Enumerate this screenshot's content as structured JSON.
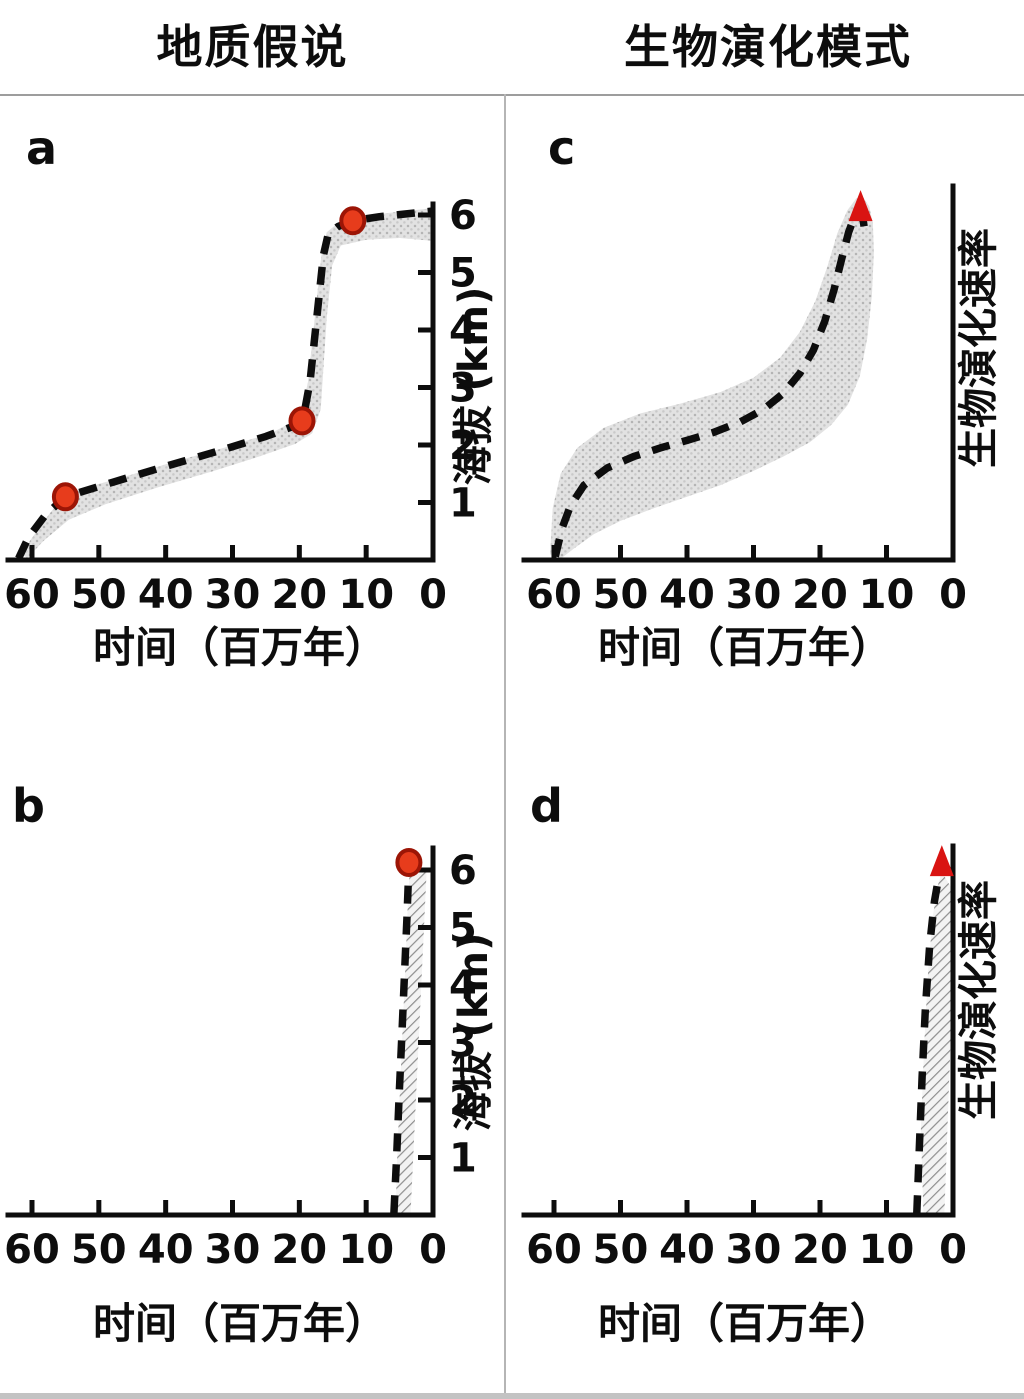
{
  "header": {
    "left_title": "地质假说",
    "right_title": "生物演化模式"
  },
  "colors": {
    "line_black": "#0d0d0d",
    "marker_red": "#e73c1c",
    "marker_stroke": "#9c1506",
    "triangle_red": "#d91412",
    "band_gray": "#cccccc",
    "hatch_gray": "#8e8e8e",
    "divider_gray": "#b5b5b5"
  },
  "chart_data": [
    {
      "id": "a",
      "panel_label": "a",
      "type": "line",
      "x_label": "时间（百万年）",
      "y_label": "海拔 (km)",
      "x_ticks": [
        60,
        50,
        40,
        30,
        20,
        10,
        0
      ],
      "y_ticks": [
        1,
        2,
        3,
        4,
        5,
        6
      ],
      "x_range": [
        63,
        0
      ],
      "x_axis_reversed": true,
      "y_range": [
        0,
        6.5
      ],
      "grid": false,
      "band_style": "stipple",
      "description": "stepwise uplift: slow rise then abrupt jump ~20-15 Ma, red dots mark uplift stages",
      "curve": [
        [
          62,
          0.03
        ],
        [
          60.5,
          0.4
        ],
        [
          58,
          0.78
        ],
        [
          55,
          1.1
        ],
        [
          48,
          1.35
        ],
        [
          40,
          1.63
        ],
        [
          32,
          1.9
        ],
        [
          25,
          2.15
        ],
        [
          21,
          2.32
        ],
        [
          19.5,
          2.42
        ],
        [
          18.4,
          3.1
        ],
        [
          17.4,
          4.2
        ],
        [
          16.4,
          5.3
        ],
        [
          15.7,
          5.66
        ],
        [
          14.2,
          5.8
        ],
        [
          12,
          5.9
        ],
        [
          8,
          5.97
        ],
        [
          4,
          6.02
        ],
        [
          0,
          6.07
        ]
      ],
      "band": [
        [
          61.6,
          0.12
        ],
        [
          58.2,
          0.68
        ],
        [
          55,
          1.16
        ],
        [
          47,
          1.42
        ],
        [
          39,
          1.7
        ],
        [
          31,
          1.96
        ],
        [
          24,
          2.22
        ],
        [
          19.9,
          2.47
        ],
        [
          18.7,
          3.1
        ],
        [
          17.7,
          4.2
        ],
        [
          16.7,
          5.3
        ],
        [
          15.9,
          5.7
        ],
        [
          14.2,
          5.86
        ],
        [
          12,
          5.96
        ],
        [
          8,
          6.02
        ],
        [
          0,
          6.12
        ],
        [
          0,
          5.55
        ],
        [
          5,
          5.6
        ],
        [
          10,
          5.57
        ],
        [
          13.8,
          5.47
        ],
        [
          15.1,
          5.12
        ],
        [
          15.9,
          4.2
        ],
        [
          16.8,
          2.62
        ],
        [
          18.1,
          2.2
        ],
        [
          20.6,
          2.02
        ],
        [
          26,
          1.8
        ],
        [
          33,
          1.54
        ],
        [
          41,
          1.27
        ],
        [
          49,
          0.97
        ],
        [
          54.5,
          0.7
        ],
        [
          58.3,
          0.33
        ],
        [
          60.7,
          0.03
        ]
      ],
      "markers": [
        {
          "shape": "circle",
          "x": 55,
          "y": 1.1
        },
        {
          "shape": "circle",
          "x": 19.6,
          "y": 2.42
        },
        {
          "shape": "circle",
          "x": 12,
          "y": 5.9
        }
      ]
    },
    {
      "id": "c",
      "panel_label": "c",
      "type": "line",
      "x_label": "时间（百万年）",
      "y_label": "生物演化速率",
      "x_ticks": [
        60,
        50,
        40,
        30,
        20,
        10,
        0
      ],
      "y_ticks": [],
      "x_range": [
        63,
        0
      ],
      "x_axis_reversed": true,
      "y_range": [
        0,
        6.5
      ],
      "grid": false,
      "band_style": "stipple",
      "description": "gradual sigmoid increase in evolutionary rate peaking ~15 Ma, red triangle at peak",
      "curve": [
        [
          59.8,
          0.06
        ],
        [
          58.8,
          0.55
        ],
        [
          57.5,
          0.95
        ],
        [
          55.5,
          1.3
        ],
        [
          52,
          1.6
        ],
        [
          48,
          1.8
        ],
        [
          44,
          1.95
        ],
        [
          40,
          2.08
        ],
        [
          36,
          2.22
        ],
        [
          32,
          2.4
        ],
        [
          28.5,
          2.62
        ],
        [
          25.5,
          2.9
        ],
        [
          23,
          3.25
        ],
        [
          21,
          3.65
        ],
        [
          19.3,
          4.15
        ],
        [
          17.9,
          4.7
        ],
        [
          16.7,
          5.25
        ],
        [
          15.7,
          5.7
        ],
        [
          14.8,
          5.98
        ],
        [
          14.1,
          6.05
        ],
        [
          13.5,
          5.9
        ],
        [
          13.2,
          5.68
        ]
      ],
      "band": [
        [
          60.6,
          0.1
        ],
        [
          60.2,
          0.9
        ],
        [
          59,
          1.5
        ],
        [
          56.5,
          1.95
        ],
        [
          52.5,
          2.3
        ],
        [
          47,
          2.55
        ],
        [
          41,
          2.72
        ],
        [
          35,
          2.92
        ],
        [
          30,
          3.17
        ],
        [
          26,
          3.52
        ],
        [
          23,
          3.97
        ],
        [
          20.7,
          4.5
        ],
        [
          18.9,
          5.1
        ],
        [
          17.4,
          5.68
        ],
        [
          15.9,
          6.08
        ],
        [
          14.6,
          6.28
        ],
        [
          13.6,
          6.32
        ],
        [
          12.6,
          6.15
        ],
        [
          12.05,
          5.85
        ],
        [
          11.9,
          5.35
        ],
        [
          12.2,
          4.6
        ],
        [
          12.9,
          3.85
        ],
        [
          14,
          3.2
        ],
        [
          15.8,
          2.7
        ],
        [
          18.3,
          2.35
        ],
        [
          21.5,
          2.05
        ],
        [
          25.5,
          1.8
        ],
        [
          30,
          1.55
        ],
        [
          35,
          1.3
        ],
        [
          40,
          1.1
        ],
        [
          45,
          0.9
        ],
        [
          50,
          0.68
        ],
        [
          54,
          0.45
        ],
        [
          57,
          0.2
        ],
        [
          58.9,
          0.03
        ]
      ],
      "markers": [
        {
          "shape": "triangle",
          "x": 13.9,
          "y": 6.12
        }
      ]
    },
    {
      "id": "b",
      "panel_label": "b",
      "type": "line",
      "x_label": "时间（百万年）",
      "y_label": "海拔 (km)",
      "x_ticks": [
        60,
        50,
        40,
        30,
        20,
        10,
        0
      ],
      "y_ticks": [
        1,
        2,
        3,
        4,
        5,
        6
      ],
      "x_range": [
        63,
        0
      ],
      "x_axis_reversed": true,
      "y_range": [
        0,
        6.5
      ],
      "grid": false,
      "band_style": "hatch",
      "description": "very recent rapid uplift: flat until ~6 Ma then steep rise to ~6 km, red dot at top",
      "curve": [
        [
          5.85,
          0.03
        ],
        [
          5.45,
          1.0
        ],
        [
          5.05,
          2.1
        ],
        [
          4.6,
          3.3
        ],
        [
          4.2,
          4.35
        ],
        [
          3.9,
          5.15
        ],
        [
          3.7,
          5.8
        ],
        [
          3.63,
          6.05
        ]
      ],
      "band": [
        [
          5.6,
          0.03
        ],
        [
          3.35,
          0.03
        ],
        [
          1.05,
          5.75
        ],
        [
          0.95,
          6.0
        ],
        [
          3.45,
          6.03
        ],
        [
          3.72,
          5.55
        ],
        [
          4.08,
          4.45
        ],
        [
          4.5,
          3.35
        ],
        [
          4.95,
          2.15
        ],
        [
          5.35,
          1.0
        ]
      ],
      "markers": [
        {
          "shape": "circle",
          "x": 3.6,
          "y": 6.13
        }
      ]
    },
    {
      "id": "d",
      "panel_label": "d",
      "type": "line",
      "x_label": "时间（百万年）",
      "y_label": "生物演化速率",
      "x_ticks": [
        60,
        50,
        40,
        30,
        20,
        10,
        0
      ],
      "y_ticks": [],
      "x_range": [
        63,
        0
      ],
      "x_axis_reversed": true,
      "y_range": [
        0,
        6.5
      ],
      "grid": false,
      "band_style": "hatch",
      "description": "evolutionary rate spikes only in last ~5 Ma, red triangle at recent peak",
      "curve": [
        [
          5.45,
          0.03
        ],
        [
          5.05,
          1.2
        ],
        [
          4.65,
          2.4
        ],
        [
          4.15,
          3.6
        ],
        [
          3.5,
          4.7
        ],
        [
          2.8,
          5.45
        ],
        [
          2.2,
          5.85
        ],
        [
          1.82,
          6.02
        ]
      ],
      "band": [
        [
          4.45,
          0.03
        ],
        [
          1.3,
          0.03
        ],
        [
          0.38,
          3.0
        ],
        [
          0.3,
          5.7
        ],
        [
          1.7,
          5.97
        ],
        [
          2.3,
          5.72
        ],
        [
          3.0,
          5.22
        ],
        [
          3.72,
          4.3
        ],
        [
          4.32,
          3.0
        ],
        [
          4.82,
          1.5
        ]
      ],
      "markers": [
        {
          "shape": "triangle",
          "x": 1.68,
          "y": 6.12
        }
      ]
    }
  ]
}
